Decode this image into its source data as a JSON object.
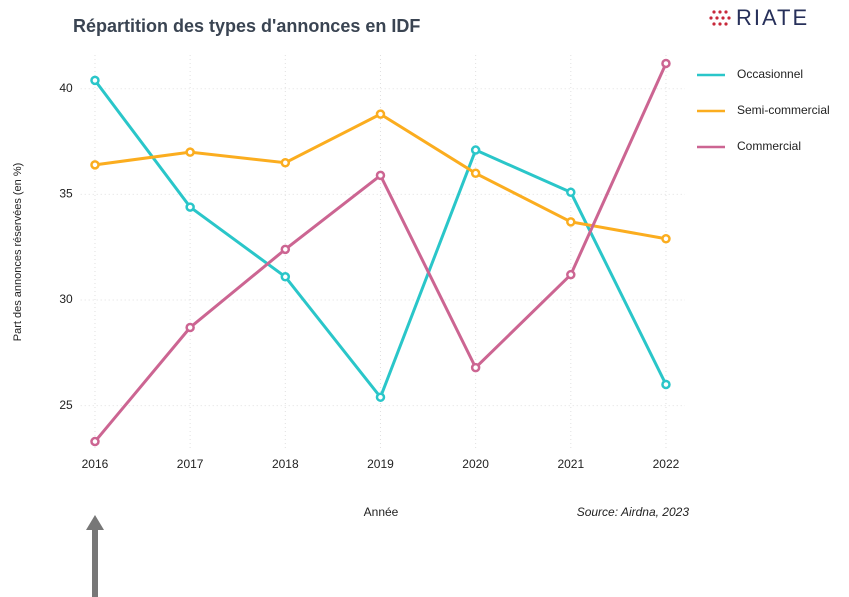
{
  "logo": "RIATE",
  "chart_data": {
    "type": "line",
    "title": "Répartition des types d'annonces en IDF",
    "x_label": "Année",
    "y_label": "Part des annonces réservées (en %)",
    "source": "Source: Airdna, 2023",
    "x": [
      2016,
      2017,
      2018,
      2019,
      2020,
      2021,
      2022
    ],
    "xlim": [
      2015.85,
      2022.2
    ],
    "xticks": [
      2016,
      2017,
      2018,
      2019,
      2020,
      2021,
      2022
    ],
    "ylim": [
      22.9,
      41.6
    ],
    "yticks": [
      25,
      30,
      35,
      40
    ],
    "grid": true,
    "legend": "right",
    "series": [
      {
        "name": "Occasionnel",
        "color": "#2ac6c9",
        "values": [
          40.4,
          34.4,
          31.1,
          25.4,
          37.1,
          35.1,
          26.0
        ]
      },
      {
        "name": "Semi-commercial",
        "color": "#fbad1f",
        "values": [
          36.4,
          37.0,
          36.5,
          38.8,
          36.0,
          33.7,
          32.9
        ]
      },
      {
        "name": "Commercial",
        "color": "#cc6592",
        "values": [
          23.3,
          28.7,
          32.4,
          35.9,
          26.8,
          31.2,
          41.2
        ]
      }
    ]
  }
}
